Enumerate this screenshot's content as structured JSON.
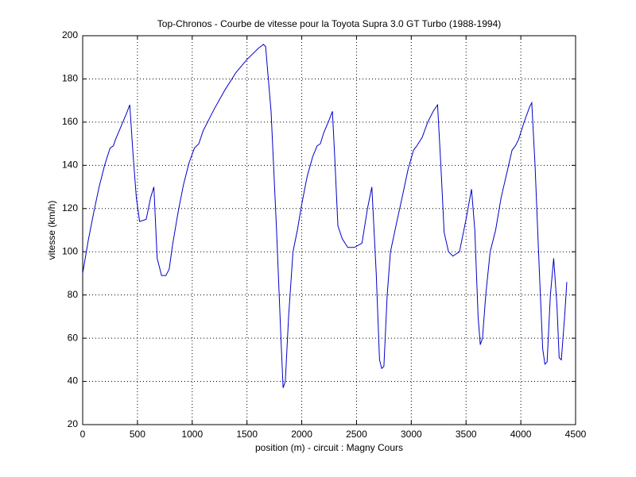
{
  "chart_data": {
    "type": "line",
    "title": "Top-Chronos - Courbe de vitesse pour la Toyota Supra 3.0 GT Turbo (1988-1994)",
    "xlabel": "position (m) - circuit : Magny Cours",
    "ylabel": "vitesse (km/h)",
    "x": [
      0,
      50,
      100,
      150,
      200,
      250,
      280,
      300,
      350,
      400,
      430,
      460,
      490,
      520,
      580,
      620,
      650,
      680,
      720,
      760,
      790,
      820,
      870,
      920,
      970,
      1020,
      1060,
      1100,
      1200,
      1300,
      1400,
      1500,
      1600,
      1650,
      1670,
      1720,
      1770,
      1810,
      1830,
      1850,
      1880,
      1920,
      1960,
      2000,
      2050,
      2100,
      2140,
      2170,
      2200,
      2250,
      2280,
      2300,
      2330,
      2370,
      2420,
      2480,
      2550,
      2600,
      2640,
      2680,
      2710,
      2730,
      2750,
      2780,
      2810,
      2860,
      2920,
      2970,
      3020,
      3050,
      3100,
      3150,
      3200,
      3240,
      3270,
      3300,
      3340,
      3380,
      3440,
      3500,
      3550,
      3580,
      3610,
      3630,
      3650,
      3680,
      3720,
      3770,
      3820,
      3870,
      3920,
      3950,
      3980,
      4030,
      4080,
      4100,
      4130,
      4170,
      4200,
      4220,
      4240,
      4270,
      4300,
      4330,
      4350,
      4370,
      4400,
      4420
    ],
    "series": [
      {
        "name": "vitesse",
        "color": "#0000c8",
        "values": [
          90,
          105,
          118,
          130,
          140,
          148,
          149,
          152,
          158,
          164,
          168,
          145,
          125,
          114,
          115,
          125,
          130,
          97,
          89,
          89,
          92,
          103,
          118,
          131,
          141,
          148,
          150,
          156,
          166,
          175,
          183,
          189,
          194,
          196,
          195,
          165,
          110,
          60,
          37,
          40,
          70,
          100,
          110,
          122,
          135,
          144,
          149,
          150,
          155,
          161,
          165,
          145,
          112,
          106,
          102,
          102,
          104,
          120,
          130,
          90,
          50,
          46,
          47,
          80,
          100,
          112,
          126,
          138,
          147,
          149,
          153,
          160,
          165,
          168,
          140,
          109,
          100,
          98,
          100,
          115,
          129,
          110,
          70,
          57,
          60,
          80,
          100,
          110,
          125,
          136,
          147,
          149,
          152,
          160,
          167,
          169,
          140,
          90,
          55,
          48,
          49,
          80,
          97,
          75,
          51,
          50,
          70,
          86
        ]
      }
    ],
    "xlim": [
      0,
      4500
    ],
    "xticks": [
      0,
      500,
      1000,
      1500,
      2000,
      2500,
      3000,
      3500,
      4000,
      4500
    ],
    "ylim": [
      20,
      200
    ],
    "yticks": [
      20,
      40,
      60,
      80,
      100,
      120,
      140,
      160,
      180,
      200
    ],
    "grid": true
  }
}
